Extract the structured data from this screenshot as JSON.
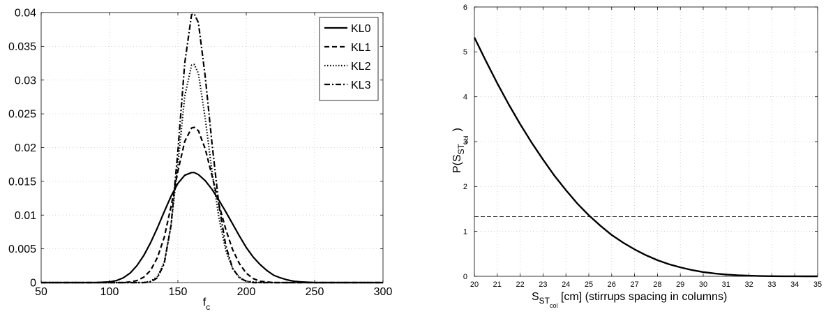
{
  "chart_data": [
    {
      "type": "line",
      "title": "",
      "xlabel": "f",
      "xlabel_subscript": "c",
      "ylabel": "",
      "xlim": [
        50,
        300
      ],
      "ylim": [
        0,
        0.04
      ],
      "xticks": [
        "50",
        "100",
        "150",
        "200",
        "250",
        "300"
      ],
      "yticks": [
        "0",
        "0.005",
        "0.01",
        "0.015",
        "0.02",
        "0.025",
        "0.03",
        "0.035",
        "0.04"
      ],
      "grid": true,
      "legend": "top-right",
      "x": [
        50,
        60,
        70,
        80,
        90,
        100,
        105,
        110,
        115,
        120,
        125,
        130,
        135,
        140,
        145,
        150,
        155,
        160,
        162,
        165,
        170,
        175,
        180,
        185,
        190,
        195,
        200,
        205,
        210,
        215,
        220,
        225,
        230,
        235,
        240,
        250,
        260,
        270,
        280,
        290,
        300
      ],
      "series": [
        {
          "name": "KL0",
          "style": "solid",
          "values": [
            0,
            0,
            0,
            0,
            0,
            0.0001,
            0.0003,
            0.0007,
            0.0014,
            0.0025,
            0.004,
            0.0059,
            0.0081,
            0.0105,
            0.0128,
            0.0147,
            0.0159,
            0.0163,
            0.0163,
            0.016,
            0.0151,
            0.0138,
            0.0122,
            0.0105,
            0.0087,
            0.0069,
            0.0052,
            0.0038,
            0.0027,
            0.0018,
            0.0011,
            0.0007,
            0.0004,
            0.0002,
            0.0001,
            0,
            0,
            0,
            0,
            0,
            0
          ]
        },
        {
          "name": "KL1",
          "style": "dashed",
          "values": [
            0,
            0,
            0,
            0,
            0,
            0,
            0,
            0,
            0.0001,
            0.0003,
            0.0008,
            0.0018,
            0.0037,
            0.0067,
            0.0113,
            0.0165,
            0.0209,
            0.0229,
            0.023,
            0.0225,
            0.0198,
            0.0158,
            0.0116,
            0.0079,
            0.0049,
            0.0028,
            0.0014,
            0.0006,
            0.0002,
            0.0001,
            0,
            0,
            0,
            0,
            0,
            0,
            0,
            0,
            0,
            0,
            0
          ]
        },
        {
          "name": "KL2",
          "style": "dotted",
          "values": [
            0,
            0,
            0,
            0,
            0,
            0,
            0,
            0,
            0,
            0,
            0,
            0.0002,
            0.0009,
            0.003,
            0.0085,
            0.0175,
            0.0276,
            0.0322,
            0.0323,
            0.031,
            0.0243,
            0.0164,
            0.0096,
            0.0048,
            0.0021,
            0.0008,
            0.0002,
            0.0001,
            0,
            0,
            0,
            0,
            0,
            0,
            0,
            0,
            0,
            0,
            0,
            0,
            0
          ]
        },
        {
          "name": "KL3",
          "style": "dashdot",
          "values": [
            0,
            0,
            0,
            0,
            0,
            0,
            0,
            0,
            0,
            0,
            0,
            0.0001,
            0.0007,
            0.0028,
            0.0085,
            0.0195,
            0.0325,
            0.0397,
            0.0398,
            0.0385,
            0.0305,
            0.0205,
            0.0115,
            0.0055,
            0.0021,
            0.0007,
            0.0002,
            0,
            0,
            0,
            0,
            0,
            0,
            0,
            0,
            0,
            0,
            0,
            0,
            0,
            0
          ]
        }
      ]
    },
    {
      "type": "line",
      "title": "",
      "xlabel": "S",
      "xlabel_sub1": "ST",
      "xlabel_sub2": "col",
      "xlabel_rest": " [cm] (stirrups spacing in columns)",
      "ylabel": "P(S",
      "ylabel_sub1": "ST",
      "ylabel_sub2": "col",
      "ylabel_rest": ")",
      "xlim": [
        20,
        35
      ],
      "ylim": [
        0,
        6
      ],
      "xticks": [
        "20",
        "21",
        "22",
        "23",
        "24",
        "25",
        "26",
        "27",
        "28",
        "29",
        "30",
        "31",
        "32",
        "33",
        "34",
        "35"
      ],
      "yticks": [
        "0",
        "1",
        "2",
        "3",
        "4",
        "5",
        "6"
      ],
      "grid": true,
      "legend": "none",
      "x": [
        20,
        20.5,
        21,
        21.5,
        22,
        22.5,
        23,
        23.5,
        24,
        24.5,
        25,
        25.5,
        26,
        26.5,
        27,
        27.5,
        28,
        28.5,
        29,
        29.5,
        30,
        30.5,
        31,
        31.5,
        32,
        32.5,
        33,
        33.5,
        34,
        34.5,
        35
      ],
      "series": [
        {
          "name": "",
          "style": "solid",
          "values": [
            5.32,
            4.8,
            4.3,
            3.83,
            3.39,
            2.98,
            2.6,
            2.24,
            1.92,
            1.62,
            1.36,
            1.13,
            0.92,
            0.75,
            0.6,
            0.47,
            0.36,
            0.27,
            0.2,
            0.14,
            0.095,
            0.063,
            0.04,
            0.024,
            0.014,
            0.007,
            0.003,
            0.001,
            0.0005,
            0.0001,
            0
          ]
        },
        {
          "name": "",
          "style": "dashed",
          "values": [
            1.33,
            1.33
          ],
          "x": [
            20,
            35
          ]
        }
      ]
    }
  ]
}
